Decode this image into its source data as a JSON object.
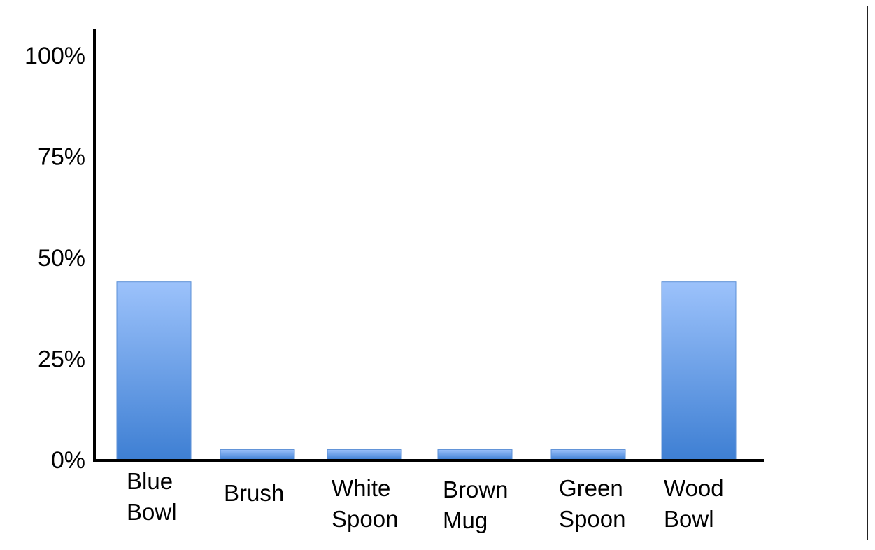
{
  "chart_data": {
    "type": "bar",
    "categories": [
      [
        "Blue",
        "Bowl"
      ],
      [
        "Brush"
      ],
      [
        "White",
        "Spoon"
      ],
      [
        "Brown",
        "Mug"
      ],
      [
        "Green",
        "Spoon"
      ],
      [
        "Wood",
        "Bowl"
      ]
    ],
    "values": [
      0.44,
      0.025,
      0.025,
      0.025,
      0.025,
      0.44
    ],
    "ylim": [
      0,
      1
    ],
    "yticks": [
      {
        "value": 0,
        "label": "0%"
      },
      {
        "value": 0.25,
        "label": "25%"
      },
      {
        "value": 0.5,
        "label": "50%"
      },
      {
        "value": 0.75,
        "label": "75%"
      },
      {
        "value": 1,
        "label": "100%"
      }
    ],
    "title": "",
    "xlabel": "",
    "ylabel": "",
    "grid": false,
    "legend": "none",
    "colors": {
      "bar_top": "#9cc2fb",
      "bar_bottom": "#3e7fd3",
      "bar_stroke": "#5b8fd6",
      "axis": "#000000"
    }
  }
}
